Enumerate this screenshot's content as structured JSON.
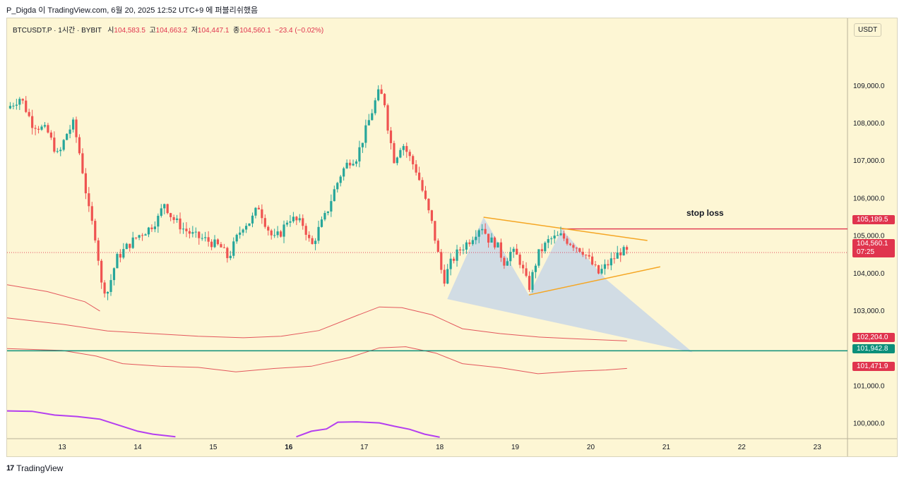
{
  "header": {
    "caption": "P_Digda 이 TradingView.com, 6월 20, 2025 12:52 UTC+9 에 퍼블리쉬했음"
  },
  "legend": {
    "symbol": "BTCUSDT.P · 1시간 · BYBIT",
    "open_label": "시",
    "open": "104,583.5",
    "high_label": "고",
    "high": "104,663.2",
    "low_label": "저",
    "low": "104,447.1",
    "close_label": "종",
    "close": "104,560.1",
    "change": "−23.4 (−0.02%)"
  },
  "currency": "USDT",
  "footer": {
    "brand": "TradingView",
    "logo_glyph": "17"
  },
  "price_tags": {
    "stop_loss": {
      "price": "105,189.5"
    },
    "last": {
      "price": "104,560.1",
      "countdown": "07:25"
    },
    "upper_band": {
      "price": "102,204.0"
    },
    "support": {
      "price": "101,942.8"
    },
    "lower_band": {
      "price": "101,471.9"
    }
  },
  "annotations": {
    "stop_loss_text": "stop loss"
  },
  "colors": {
    "background": "#fdf6d4",
    "up": "#26a69a",
    "down": "#ef5350",
    "stop_loss": "#e0344e",
    "support": "#0c8f7a",
    "wedge": "#f5a623",
    "band": "#e3565c",
    "purple": "#b43ef0",
    "projection": "#c2d3ea"
  },
  "chart_data": {
    "type": "candlestick",
    "timeframe": "1시간",
    "title": "BTCUSDT.P · 1시간 · BYBIT",
    "ylim": [
      99600,
      110800
    ],
    "y_ticks": [
      {
        "value": 100000,
        "label": "100,000.0"
      },
      {
        "value": 101000,
        "label": "101,000.0"
      },
      {
        "value": 102000,
        "label": "102,000.0"
      },
      {
        "value": 103000,
        "label": "103,000.0"
      },
      {
        "value": 104000,
        "label": "104,000.0"
      },
      {
        "value": 105000,
        "label": "105,000.0"
      },
      {
        "value": 106000,
        "label": "106,000.0"
      },
      {
        "value": 107000,
        "label": "107,000.0"
      },
      {
        "value": 108000,
        "label": "108,000.0"
      },
      {
        "value": 109000,
        "label": "109,000.0"
      }
    ],
    "xlim": [
      12.27,
      23.4
    ],
    "x_ticks": [
      {
        "value": 13,
        "label": "13",
        "bold": false
      },
      {
        "value": 14,
        "label": "14",
        "bold": false
      },
      {
        "value": 15,
        "label": "15",
        "bold": false
      },
      {
        "value": 16,
        "label": "16",
        "bold": true
      },
      {
        "value": 17,
        "label": "17",
        "bold": false
      },
      {
        "value": 18,
        "label": "18",
        "bold": false
      },
      {
        "value": 19,
        "label": "19",
        "bold": false
      },
      {
        "value": 20,
        "label": "20",
        "bold": false
      },
      {
        "value": 21,
        "label": "21",
        "bold": false
      },
      {
        "value": 22,
        "label": "22",
        "bold": false
      },
      {
        "value": 23,
        "label": "23",
        "bold": false
      }
    ],
    "close_path": [
      [
        12.27,
        108400
      ],
      [
        12.45,
        108700
      ],
      [
        12.6,
        108000
      ],
      [
        12.8,
        107800
      ],
      [
        12.95,
        107100
      ],
      [
        13.05,
        107700
      ],
      [
        13.15,
        108000
      ],
      [
        13.25,
        107000
      ],
      [
        13.35,
        105700
      ],
      [
        13.45,
        104900
      ],
      [
        13.52,
        103700
      ],
      [
        13.6,
        103500
      ],
      [
        13.72,
        104400
      ],
      [
        13.85,
        104700
      ],
      [
        14.0,
        105000
      ],
      [
        14.15,
        105200
      ],
      [
        14.28,
        105500
      ],
      [
        14.35,
        105900
      ],
      [
        14.45,
        105500
      ],
      [
        14.6,
        105200
      ],
      [
        14.75,
        105000
      ],
      [
        14.9,
        104900
      ],
      [
        15.0,
        104800
      ],
      [
        15.1,
        104700
      ],
      [
        15.2,
        104400
      ],
      [
        15.3,
        104900
      ],
      [
        15.4,
        105300
      ],
      [
        15.5,
        105400
      ],
      [
        15.6,
        105800
      ],
      [
        15.7,
        105300
      ],
      [
        15.8,
        104900
      ],
      [
        15.9,
        105100
      ],
      [
        16.0,
        105500
      ],
      [
        16.1,
        105400
      ],
      [
        16.2,
        105300
      ],
      [
        16.3,
        104700
      ],
      [
        16.4,
        105200
      ],
      [
        16.5,
        105600
      ],
      [
        16.6,
        106200
      ],
      [
        16.7,
        106700
      ],
      [
        16.8,
        107000
      ],
      [
        16.9,
        107100
      ],
      [
        17.0,
        107700
      ],
      [
        17.1,
        108300
      ],
      [
        17.18,
        108800
      ],
      [
        17.26,
        108700
      ],
      [
        17.32,
        107800
      ],
      [
        17.4,
        107000
      ],
      [
        17.5,
        107500
      ],
      [
        17.6,
        107100
      ],
      [
        17.7,
        106700
      ],
      [
        17.8,
        106000
      ],
      [
        17.9,
        105300
      ],
      [
        18.0,
        104300
      ],
      [
        18.05,
        103800
      ],
      [
        18.15,
        104300
      ],
      [
        18.25,
        104600
      ],
      [
        18.4,
        104900
      ],
      [
        18.55,
        105300
      ],
      [
        18.65,
        104900
      ],
      [
        18.75,
        104800
      ],
      [
        18.85,
        104300
      ],
      [
        18.95,
        104600
      ],
      [
        19.05,
        104400
      ],
      [
        19.18,
        103600
      ],
      [
        19.3,
        104500
      ],
      [
        19.45,
        104900
      ],
      [
        19.6,
        105000
      ],
      [
        19.75,
        104800
      ],
      [
        19.9,
        104600
      ],
      [
        20.0,
        104300
      ],
      [
        20.1,
        104000
      ],
      [
        20.2,
        104200
      ],
      [
        20.3,
        104400
      ],
      [
        20.4,
        104600
      ],
      [
        20.48,
        104560
      ]
    ],
    "stop_loss": 105189.5,
    "last_price": 104560.1,
    "support": 101942.8,
    "wedge": {
      "upper": [
        [
          18.58,
          105500
        ],
        [
          20.75,
          104880
        ]
      ],
      "lower": [
        [
          19.18,
          103430
        ],
        [
          20.92,
          104180
        ]
      ]
    },
    "projection": [
      [
        18.1,
        103320
      ],
      [
        18.58,
        105500
      ],
      [
        19.18,
        103430
      ],
      [
        19.62,
        105180
      ],
      [
        20.2,
        103850
      ],
      [
        21.35,
        101900
      ]
    ],
    "upper_band": [
      [
        12.27,
        102820
      ],
      [
        13.0,
        102650
      ],
      [
        13.6,
        102470
      ],
      [
        14.2,
        102400
      ],
      [
        14.8,
        102330
      ],
      [
        15.4,
        102290
      ],
      [
        15.9,
        102330
      ],
      [
        16.4,
        102480
      ],
      [
        16.9,
        102880
      ],
      [
        17.2,
        103110
      ],
      [
        17.5,
        103090
      ],
      [
        17.9,
        102900
      ],
      [
        18.3,
        102530
      ],
      [
        18.8,
        102400
      ],
      [
        19.3,
        102310
      ],
      [
        19.8,
        102260
      ],
      [
        20.48,
        102204
      ]
    ],
    "lower_band": [
      [
        12.27,
        102000
      ],
      [
        13.0,
        101950
      ],
      [
        13.45,
        101800
      ],
      [
        13.8,
        101600
      ],
      [
        14.3,
        101530
      ],
      [
        14.8,
        101500
      ],
      [
        15.3,
        101380
      ],
      [
        15.8,
        101470
      ],
      [
        16.3,
        101530
      ],
      [
        16.8,
        101760
      ],
      [
        17.2,
        102020
      ],
      [
        17.55,
        102050
      ],
      [
        17.95,
        101880
      ],
      [
        18.3,
        101600
      ],
      [
        18.8,
        101490
      ],
      [
        19.3,
        101330
      ],
      [
        19.8,
        101400
      ],
      [
        20.2,
        101430
      ],
      [
        20.48,
        101472
      ]
    ],
    "upper_band_top": [
      [
        12.27,
        103700
      ],
      [
        12.8,
        103520
      ],
      [
        13.3,
        103250
      ],
      [
        13.5,
        103000
      ]
    ],
    "purple_indicator": [
      [
        12.27,
        100340
      ],
      [
        12.6,
        100330
      ],
      [
        12.9,
        100230
      ],
      [
        13.2,
        100190
      ],
      [
        13.5,
        100120
      ],
      [
        13.7,
        99990
      ],
      [
        14.0,
        99800
      ],
      [
        14.2,
        99720
      ],
      [
        14.5,
        99650
      ]
    ],
    "purple_indicator_2": [
      [
        16.1,
        99650
      ],
      [
        16.3,
        99800
      ],
      [
        16.5,
        99860
      ],
      [
        16.65,
        100040
      ],
      [
        16.9,
        100050
      ],
      [
        17.2,
        100020
      ],
      [
        17.4,
        99930
      ],
      [
        17.6,
        99850
      ],
      [
        17.8,
        99720
      ],
      [
        18.0,
        99640
      ]
    ]
  }
}
